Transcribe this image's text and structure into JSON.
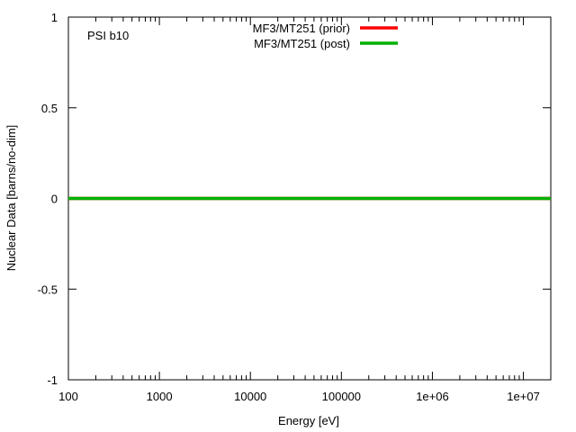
{
  "chart_data": {
    "type": "line",
    "title": "",
    "annotation": "PSI b10",
    "xlabel": "Energy [eV]",
    "ylabel": "Nuclear Data [barns/no-dim]",
    "x_scale": "log",
    "xlim": [
      100,
      20000000
    ],
    "ylim": [
      -1,
      1
    ],
    "x_ticks": [
      {
        "value": 100,
        "label": "100"
      },
      {
        "value": 1000,
        "label": "1000"
      },
      {
        "value": 10000,
        "label": "10000"
      },
      {
        "value": 100000,
        "label": "100000"
      },
      {
        "value": 1000000,
        "label": "1e+06"
      },
      {
        "value": 10000000,
        "label": "1e+07"
      }
    ],
    "y_ticks": [
      {
        "value": 1,
        "label": "1"
      },
      {
        "value": 0.5,
        "label": "0.5"
      },
      {
        "value": 0,
        "label": "0"
      },
      {
        "value": -0.5,
        "label": "-0.5"
      },
      {
        "value": -1,
        "label": "-1"
      }
    ],
    "grid": false,
    "legend_position": "top-center",
    "series": [
      {
        "name": "MF3/MT251 (prior)",
        "color": "#ff0000",
        "x": [
          100,
          20000000
        ],
        "y": [
          0,
          0
        ]
      },
      {
        "name": "MF3/MT251 (post)",
        "color": "#00b000",
        "x": [
          100,
          20000000
        ],
        "y": [
          0,
          0
        ]
      }
    ]
  }
}
